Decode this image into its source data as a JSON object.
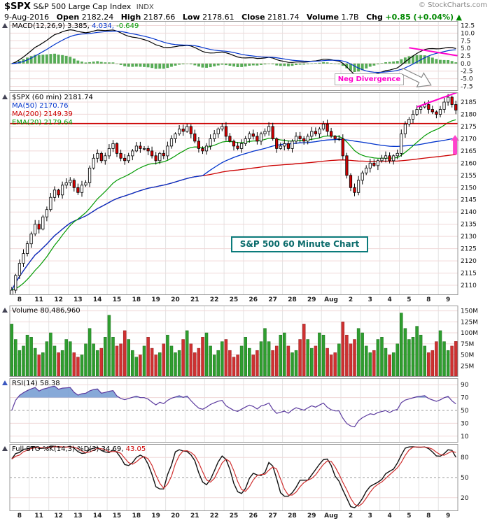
{
  "header": {
    "symbol": "$SPX",
    "name": "S&P 500 Large Cap Index",
    "exchange": "INDX",
    "copyright": "© StockCharts.com",
    "date": "9-Aug-2016",
    "open_label": "Open",
    "open": "2182.24",
    "high_label": "High",
    "high": "2187.66",
    "low_label": "Low",
    "low": "2178.61",
    "close_label": "Close",
    "close": "2181.74",
    "volume_label": "Volume",
    "volume": "1.7B",
    "chg_label": "Chg",
    "chg": "+0.85 (+0.04%)",
    "chg_arrow": "▲"
  },
  "panels": {
    "macd": {
      "label_main": "MACD(12,26,9) 3.385,",
      "label_signal": "4.034,",
      "label_hist": "-0.649",
      "axis_values": [
        12.5,
        10.0,
        7.5,
        5.0,
        2.5,
        0.0,
        -2.5,
        -5.0,
        -7.5
      ],
      "range": [
        -9.0,
        14.0
      ]
    },
    "price": {
      "label": "$SPX (60 min) 2181.74",
      "ma50_label": "MA(50) 2170.76",
      "ma200_label": "MA(200) 2149.39",
      "ema20_label": "EMA(20) 2179.64",
      "axis_values": [
        2185,
        2180,
        2175,
        2170,
        2165,
        2160,
        2155,
        2150,
        2145,
        2140,
        2135,
        2130,
        2125,
        2120,
        2115,
        2110
      ],
      "range": [
        2106,
        2189
      ]
    },
    "volume": {
      "label": "Volume 80,486,960",
      "axis_values": [
        150,
        125,
        100,
        75,
        50,
        25
      ],
      "range": [
        0,
        162
      ]
    },
    "rsi": {
      "label": "RSI(14) 58.38",
      "axis_values": [
        90,
        70,
        50,
        30,
        10
      ],
      "band": [
        30,
        70
      ],
      "range": [
        0,
        100
      ]
    },
    "sto": {
      "label_k": "Full STO %K(14,3) %D(3) 34.69,",
      "label_d": "43.05",
      "axis_values": [
        80,
        50,
        20
      ],
      "band": [
        20,
        80
      ],
      "range": [
        0,
        100
      ]
    }
  },
  "annotations": {
    "neg_divergence": "Neg Divergence",
    "chart_caption": "S&P 500 60 Minute Chart",
    "resistance_level": 2176.2,
    "price_trendline": {
      "i1": 104,
      "p1": 2183.0,
      "i2": 114.4,
      "p2": 2189.0
    },
    "macd_trendline": {
      "i1": 102,
      "v1": 5.2,
      "i2": 114.4,
      "v2": 2.6
    },
    "up_arrow": {
      "bar": 113.8,
      "tip_price": 2171.5,
      "base_price": 2163.5
    }
  },
  "colors": {
    "candle_up_fill": "#ffffff",
    "candle_down_fill": "#d40000",
    "candle_stroke": "#000000",
    "ma50": "#0033cc",
    "ma200": "#cc0000",
    "ema20": "#009900",
    "macd_line": "#000000",
    "macd_signal": "#0033cc",
    "macd_hist": "#3a9d3a",
    "vol_up": "#2f9e2f",
    "vol_down": "#cf3131",
    "rsi_line": "#5b3a9e",
    "rsi_fill": "#7aa0d4",
    "rsi_band": "#ece4f6",
    "sto_k": "#111111",
    "sto_d": "#d03030",
    "sto_band": "#f8ecf4",
    "magenta": "#ff00cc",
    "grid_h": "#f0d8d8",
    "grid_v": "#e2e2e2",
    "border": "#999999"
  },
  "chart_data": {
    "type": "candlestick+volume+indicators",
    "timeframe": "60 min",
    "bars_per_day": 5,
    "x_labels": [
      "8",
      "11",
      "12",
      "13",
      "14",
      "15",
      "18",
      "19",
      "20",
      "21",
      "22",
      "25",
      "26",
      "27",
      "28",
      "29",
      "Aug",
      "2",
      "3",
      "4",
      "5",
      "8",
      "9"
    ],
    "close": [
      2108,
      2114,
      2119,
      2123,
      2127,
      2131,
      2135,
      2133,
      2138,
      2141,
      2146,
      2149,
      2147,
      2151,
      2152,
      2153,
      2150,
      2148,
      2151,
      2152,
      2158,
      2162,
      2164,
      2161,
      2163,
      2166,
      2168,
      2164,
      2162,
      2161,
      2163,
      2165,
      2167,
      2166,
      2166,
      2165,
      2163,
      2161,
      2164,
      2163,
      2167,
      2170,
      2172,
      2174,
      2173,
      2175,
      2172,
      2169,
      2166,
      2165,
      2167,
      2170,
      2172,
      2174,
      2175,
      2171,
      2169,
      2167,
      2166,
      2168,
      2170,
      2172,
      2171,
      2169,
      2172,
      2173,
      2175,
      2170,
      2166,
      2167,
      2168,
      2166,
      2169,
      2171,
      2170,
      2169,
      2171,
      2173,
      2172,
      2174,
      2176,
      2173,
      2171,
      2170,
      2170,
      2163,
      2155,
      2150,
      2148,
      2153,
      2156,
      2158,
      2160,
      2159,
      2161,
      2162,
      2163,
      2161,
      2163,
      2164,
      2172,
      2176,
      2178,
      2180,
      2182,
      2183,
      2184,
      2182,
      2181,
      2180,
      2182,
      2185,
      2187,
      2184,
      2181.7
    ],
    "volume_millions": [
      120,
      85,
      60,
      70,
      95,
      90,
      65,
      50,
      55,
      80,
      100,
      70,
      55,
      60,
      85,
      80,
      55,
      45,
      50,
      75,
      110,
      75,
      60,
      65,
      90,
      140,
      90,
      70,
      75,
      105,
      85,
      60,
      45,
      50,
      70,
      90,
      65,
      50,
      55,
      75,
      95,
      70,
      55,
      60,
      85,
      105,
      75,
      55,
      65,
      90,
      100,
      70,
      50,
      60,
      80,
      85,
      60,
      45,
      50,
      70,
      90,
      65,
      50,
      60,
      80,
      110,
      80,
      60,
      70,
      95,
      100,
      70,
      55,
      60,
      85,
      120,
      85,
      65,
      70,
      100,
      95,
      65,
      50,
      55,
      75,
      125,
      95,
      75,
      85,
      110,
      100,
      70,
      55,
      60,
      85,
      90,
      65,
      50,
      55,
      75,
      145,
      110,
      85,
      90,
      115,
      95,
      70,
      55,
      60,
      80,
      105,
      80,
      60,
      70,
      80.5
    ],
    "indicators_shown": [
      "MACD(12,26,9)",
      "MA(50)",
      "MA(200)",
      "EMA(20)",
      "Volume",
      "RSI(14)",
      "Full STO %K(14,3) %D(3)"
    ]
  }
}
